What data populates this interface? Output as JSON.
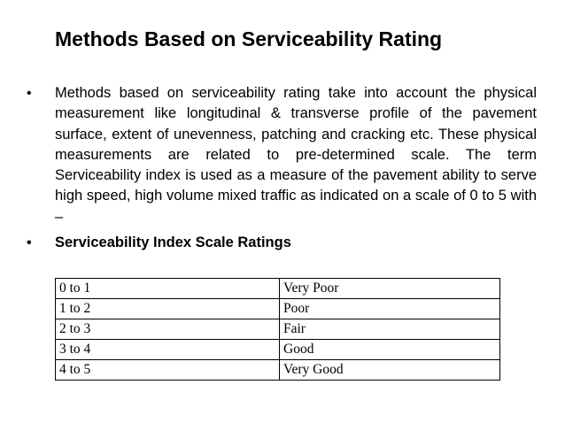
{
  "slide": {
    "title": "Methods Based on Serviceability Rating",
    "bullets": [
      {
        "glyph": "•",
        "text": "Methods based on serviceability rating take into account the physical measurement like longitudinal & transverse profile of the pavement surface, extent of unevenness, patching and cracking etc. These physical measurements are related to pre-determined scale. The term Serviceability index is used as a measure of the pavement ability to serve high speed, high volume mixed traffic as indicated on a scale of 0 to 5 with –"
      },
      {
        "glyph": "•",
        "text": "Serviceability Index Scale Ratings"
      }
    ],
    "table": {
      "rows": [
        {
          "range": "0 to 1",
          "rating": "Very Poor"
        },
        {
          "range": "1 to 2",
          "rating": "Poor"
        },
        {
          "range": "2 to 3",
          "rating": "Fair"
        },
        {
          "range": "3 to 4",
          "rating": "Good"
        },
        {
          "range": "4 to 5",
          "rating": "Very Good"
        }
      ]
    }
  }
}
